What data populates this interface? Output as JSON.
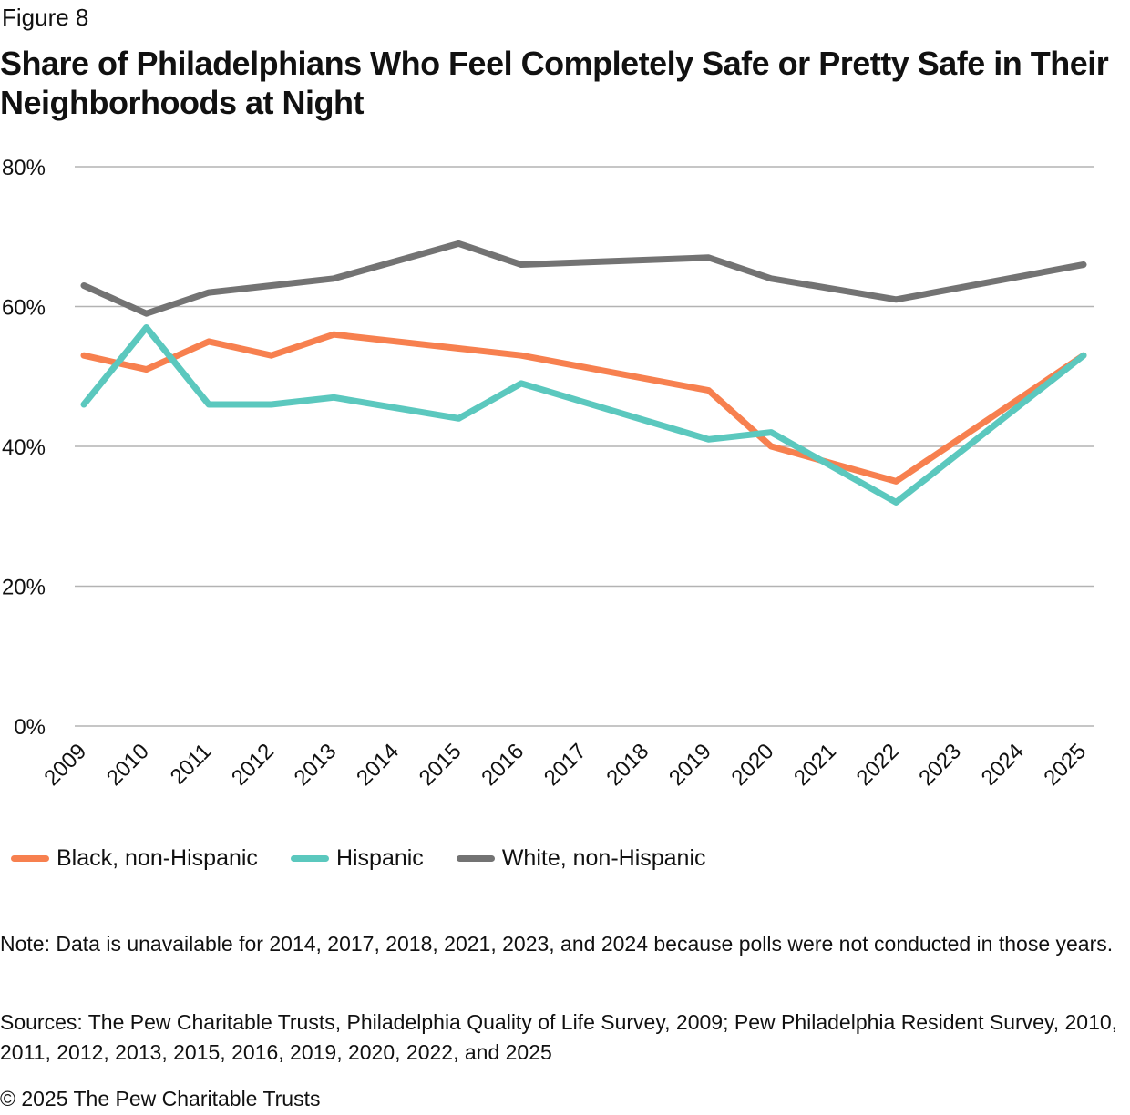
{
  "figure_label": "Figure 8",
  "note": "Note: Data is unavailable for 2014, 2017, 2018, 2021, 2023, and 2024 because polls were not conducted in those years.",
  "sources": "Sources: The Pew Charitable Trusts, Philadelphia Quality of Life Survey, 2009; Pew Philadelphia Resident Survey, 2010, 2011, 2012, 2013, 2015, 2016, 2019, 2020, 2022, and 2025",
  "copyright": "© 2025 The Pew Charitable Trusts",
  "chart_data": {
    "type": "line",
    "title": "Share of Philadelphians Who Feel Completely Safe or Pretty Safe in Their Neighborhoods at Night",
    "x": [
      "2009",
      "2010",
      "2011",
      "2012",
      "2013",
      "2014",
      "2015",
      "2016",
      "2017",
      "2018",
      "2019",
      "2020",
      "2021",
      "2022",
      "2023",
      "2024",
      "2025"
    ],
    "ylim": [
      0,
      80
    ],
    "yticks": [
      0,
      20,
      40,
      60,
      80
    ],
    "ytick_labels": [
      "0%",
      "20%",
      "40%",
      "60%",
      "80%"
    ],
    "grid": true,
    "legend_position": "bottom-left",
    "series": [
      {
        "name": "Black, non-Hispanic",
        "color": "#F7804F",
        "points": [
          [
            "2009",
            53
          ],
          [
            "2010",
            51
          ],
          [
            "2011",
            55
          ],
          [
            "2012",
            53
          ],
          [
            "2013",
            56
          ],
          [
            "2015",
            54
          ],
          [
            "2016",
            53
          ],
          [
            "2019",
            48
          ],
          [
            "2020",
            40
          ],
          [
            "2022",
            35
          ],
          [
            "2025",
            53
          ]
        ]
      },
      {
        "name": "Hispanic",
        "color": "#5BC8BE",
        "points": [
          [
            "2009",
            46
          ],
          [
            "2010",
            57
          ],
          [
            "2011",
            46
          ],
          [
            "2012",
            46
          ],
          [
            "2013",
            47
          ],
          [
            "2015",
            44
          ],
          [
            "2016",
            49
          ],
          [
            "2019",
            41
          ],
          [
            "2020",
            42
          ],
          [
            "2022",
            32
          ],
          [
            "2025",
            53
          ]
        ]
      },
      {
        "name": "White, non-Hispanic",
        "color": "#737373",
        "points": [
          [
            "2009",
            63
          ],
          [
            "2010",
            59
          ],
          [
            "2011",
            62
          ],
          [
            "2012",
            63
          ],
          [
            "2013",
            64
          ],
          [
            "2015",
            69
          ],
          [
            "2016",
            66
          ],
          [
            "2019",
            67
          ],
          [
            "2020",
            64
          ],
          [
            "2022",
            61
          ],
          [
            "2025",
            66
          ]
        ]
      }
    ]
  }
}
